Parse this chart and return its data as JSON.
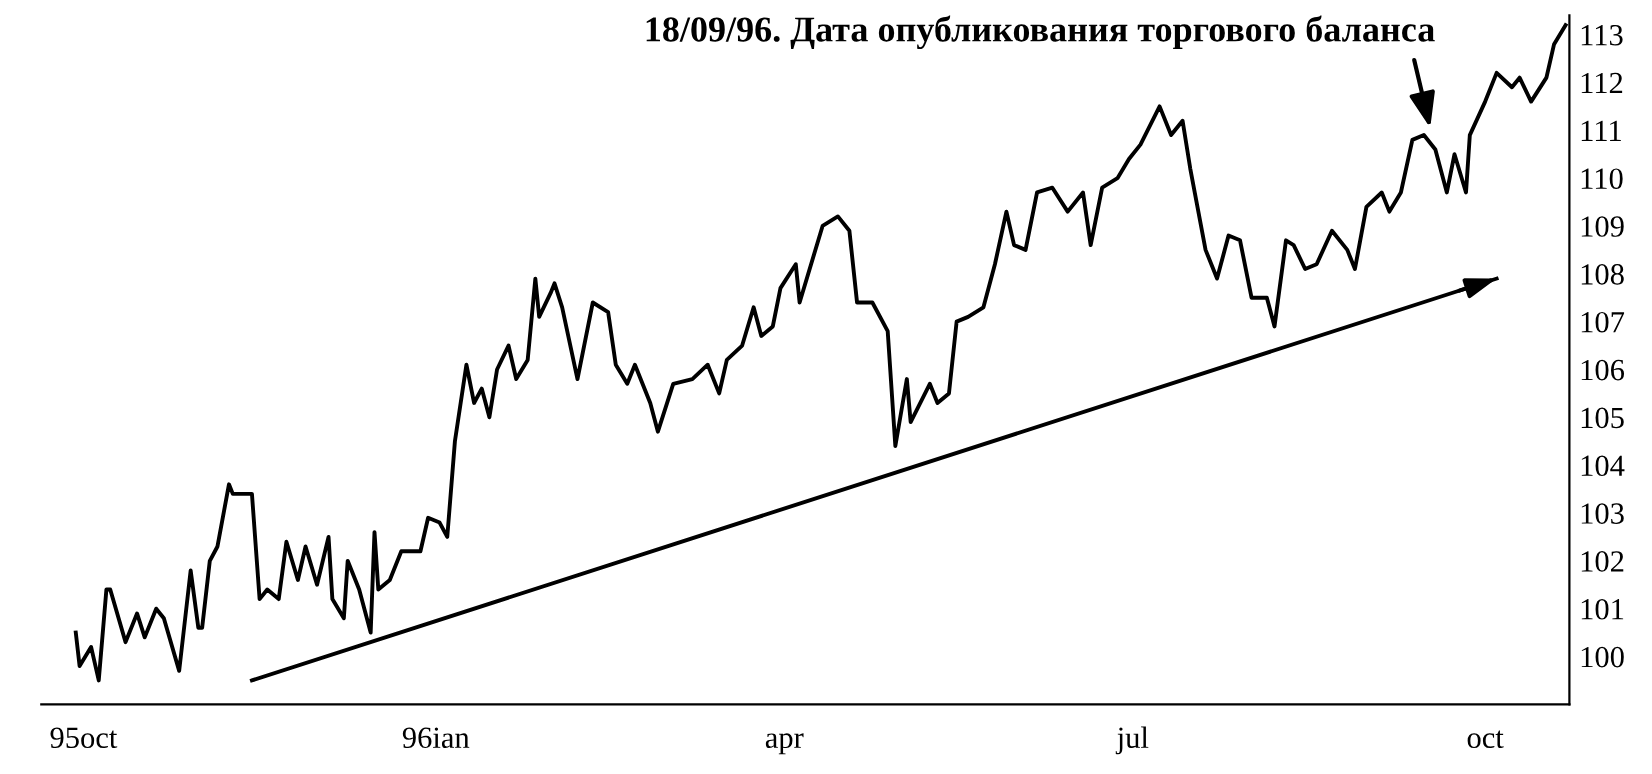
{
  "chart_data": {
    "type": "line",
    "x": [
      "1995-09-29",
      "1995-09-30",
      "1995-10-03",
      "1995-10-05",
      "1995-10-07",
      "1995-10-08",
      "1995-10-12",
      "1995-10-15",
      "1995-10-17",
      "1995-10-20",
      "1995-10-22",
      "1995-10-26",
      "1995-10-29",
      "1995-10-31",
      "1995-11-01",
      "1995-11-03",
      "1995-11-05",
      "1995-11-08",
      "1995-11-09",
      "1995-11-12",
      "1995-11-14",
      "1995-11-16",
      "1995-11-18",
      "1995-11-21",
      "1995-11-23",
      "1995-11-26",
      "1995-11-28",
      "1995-12-01",
      "1995-12-04",
      "1995-12-05",
      "1995-12-08",
      "1995-12-09",
      "1995-12-12",
      "1995-12-15",
      "1995-12-16",
      "1995-12-17",
      "1995-12-20",
      "1995-12-23",
      "1995-12-28",
      "1995-12-30",
      "1996-01-02",
      "1996-01-04",
      "1996-01-06",
      "1996-01-09",
      "1996-01-11",
      "1996-01-13",
      "1996-01-15",
      "1996-01-17",
      "1996-01-20",
      "1996-01-22",
      "1996-01-25",
      "1996-01-27",
      "1996-01-28",
      "1996-01-31",
      "1996-02-01",
      "1996-02-03",
      "1996-02-07",
      "1996-02-11",
      "1996-02-15",
      "1996-02-17",
      "1996-02-20",
      "1996-02-22",
      "1996-02-26",
      "1996-02-28",
      "1996-03-03",
      "1996-03-08",
      "1996-03-12",
      "1996-03-15",
      "1996-03-17",
      "1996-03-21",
      "1996-03-24",
      "1996-03-26",
      "1996-03-29",
      "1996-03-31",
      "1996-04-04",
      "1996-04-05",
      "1996-04-11",
      "1996-04-15",
      "1996-04-18",
      "1996-04-20",
      "1996-04-24",
      "1996-04-28",
      "1996-04-30",
      "1996-05-03",
      "1996-05-04",
      "1996-05-09",
      "1996-05-11",
      "1996-05-14",
      "1996-05-16",
      "1996-05-19",
      "1996-05-23",
      "1996-05-26",
      "1996-05-29",
      "1996-05-31",
      "1996-06-03",
      "1996-06-06",
      "1996-06-10",
      "1996-06-14",
      "1996-06-18",
      "1996-06-20",
      "1996-06-23",
      "1996-06-27",
      "1996-06-30",
      "1996-07-03",
      "1996-07-08",
      "1996-07-11",
      "1996-07-14",
      "1996-07-16",
      "1996-07-20",
      "1996-07-23",
      "1996-07-26",
      "1996-07-29",
      "1996-08-01",
      "1996-08-05",
      "1996-08-07",
      "1996-08-10",
      "1996-08-12",
      "1996-08-15",
      "1996-08-18",
      "1996-08-22",
      "1996-08-26",
      "1996-08-28",
      "1996-08-31",
      "1996-09-04",
      "1996-09-06",
      "1996-09-09",
      "1996-09-12",
      "1996-09-15",
      "1996-09-18",
      "1996-09-21",
      "1996-09-23",
      "1996-09-26",
      "1996-09-27",
      "1996-10-01",
      "1996-10-04",
      "1996-10-08",
      "1996-10-10",
      "1996-10-13",
      "1996-10-17",
      "1996-10-19",
      "1996-10-22"
    ],
    "series": [
      {
        "color": "#000000",
        "values": [
          100.5,
          99.8,
          100.2,
          99.5,
          101.4,
          101.4,
          100.3,
          100.9,
          100.4,
          101.0,
          100.8,
          99.7,
          101.8,
          100.6,
          100.6,
          102.0,
          102.3,
          103.6,
          103.4,
          103.4,
          103.4,
          101.2,
          101.4,
          101.2,
          102.4,
          101.6,
          102.3,
          101.5,
          102.5,
          101.2,
          100.8,
          102.0,
          101.4,
          100.5,
          102.6,
          101.4,
          101.6,
          102.2,
          102.2,
          102.9,
          102.8,
          102.5,
          104.5,
          106.1,
          105.3,
          105.6,
          105.0,
          106.0,
          106.5,
          105.8,
          106.2,
          107.9,
          107.1,
          107.6,
          107.8,
          107.3,
          105.8,
          107.4,
          107.2,
          106.1,
          105.7,
          106.1,
          105.3,
          104.7,
          105.7,
          105.8,
          106.1,
          105.5,
          106.2,
          106.5,
          107.3,
          106.7,
          106.9,
          107.7,
          108.2,
          107.4,
          109.0,
          109.2,
          108.9,
          107.4,
          107.4,
          106.8,
          104.4,
          105.8,
          104.9,
          105.7,
          105.3,
          105.5,
          107.0,
          107.1,
          107.3,
          108.2,
          109.3,
          108.6,
          108.5,
          109.7,
          109.8,
          109.3,
          109.7,
          108.6,
          109.8,
          110.0,
          110.4,
          110.7,
          111.5,
          110.9,
          111.2,
          110.2,
          108.5,
          107.9,
          108.8,
          108.7,
          107.5,
          107.5,
          106.9,
          108.7,
          108.6,
          108.1,
          108.2,
          108.9,
          108.5,
          108.1,
          109.4,
          109.7,
          109.3,
          109.7,
          110.8,
          110.9,
          110.6,
          109.7,
          110.5,
          109.7,
          110.9,
          111.6,
          112.2,
          111.9,
          112.1,
          111.6,
          112.1,
          112.8,
          113.2
        ]
      },
      {
        "type": "line",
        "color": "#000000",
        "x": [
          "1995-11-14",
          "1996-10-04"
        ],
        "values": [
          99.5,
          107.9
        ]
      }
    ],
    "annotations": [
      {
        "text": "18/09/96. Дата опубликования торгового баланса",
        "x": "1996-09-18",
        "y": 110.6
      }
    ],
    "xlim": [
      "1995-09-20",
      "1996-10-23"
    ],
    "xticks": [
      {
        "value": "1995-10-01",
        "label": "95oct"
      },
      {
        "value": "1996-01-01",
        "label": "96ian"
      },
      {
        "value": "1996-04-01",
        "label": "apr"
      },
      {
        "value": "1996-07-01",
        "label": "jul"
      },
      {
        "value": "1996-10-01",
        "label": "oct"
      }
    ],
    "ylim": [
      99,
      113.4
    ],
    "yticks": [
      100,
      101,
      102,
      103,
      104,
      105,
      106,
      107,
      108,
      109,
      110,
      111,
      112,
      113
    ],
    "grid": false,
    "legend": false
  }
}
